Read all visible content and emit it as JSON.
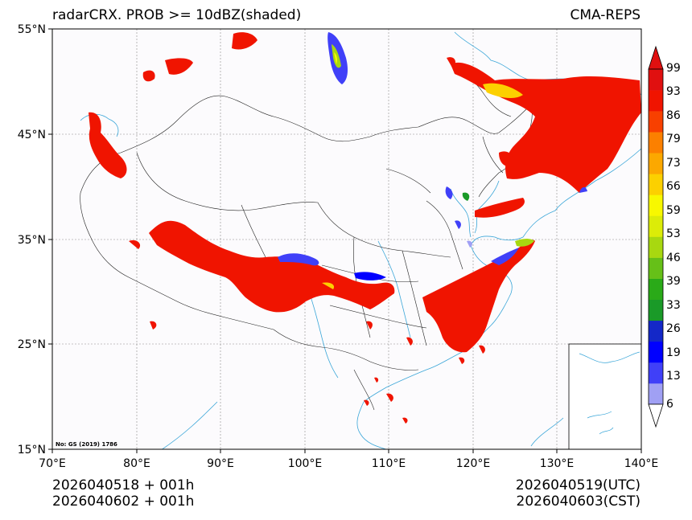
{
  "header": {
    "title_left": "radarCRX. PROB >= 10dBZ(shaded)",
    "title_right": "CMA-REPS"
  },
  "map": {
    "lat_labels": [
      "55°N",
      "45°N",
      "35°N",
      "25°N",
      "15°N"
    ],
    "lon_labels": [
      "70°E",
      "80°E",
      "90°E",
      "100°E",
      "110°E",
      "120°E",
      "130°E",
      "140°E"
    ],
    "gs_note": "No: GS (2019) 1786"
  },
  "colorbar": {
    "ticks": [
      "99",
      "93",
      "86",
      "79",
      "73",
      "66",
      "59",
      "53",
      "46",
      "39",
      "33",
      "26",
      "19",
      "13",
      "6"
    ],
    "colors": [
      "#a0a0f4",
      "#4040f8",
      "#0000ff",
      "#1428c8",
      "#1a9a28",
      "#2aaa18",
      "#66c018",
      "#a8d810",
      "#dcec08",
      "#f8f800",
      "#fcd000",
      "#fca800",
      "#fc8000",
      "#f84000",
      "#f01400",
      "#e01010"
    ],
    "top_arrow_color": "#e01010",
    "bottom_arrow_color": "#ffffff"
  },
  "footer": {
    "init_utc": "2026040518  +  001h",
    "init_cst": "2026040602  +  001h",
    "valid_utc": "2026040519(UTC)",
    "valid_cst": "2026040603(CST)"
  }
}
